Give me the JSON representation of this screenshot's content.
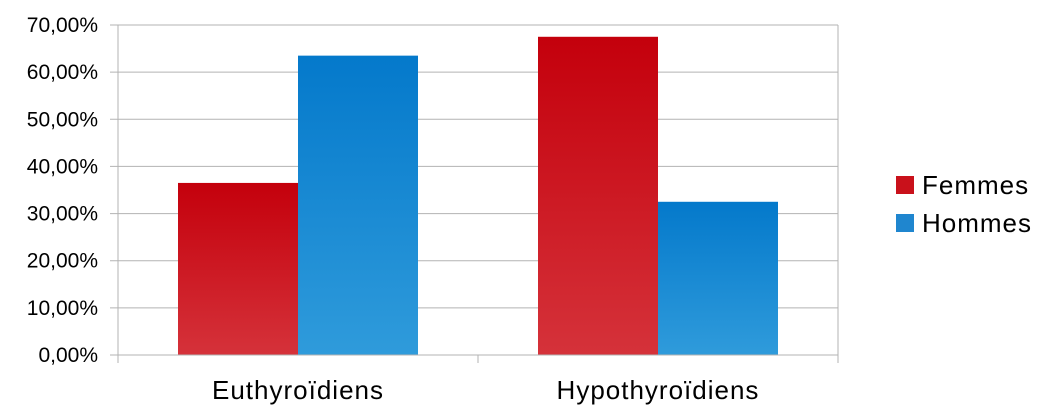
{
  "chart_data": {
    "type": "bar",
    "categories": [
      "Euthyroïdiens",
      "Hypothyroïdiens"
    ],
    "series": [
      {
        "name": "Femmes",
        "values": [
          36.5,
          67.5
        ],
        "color": "#c9111b"
      },
      {
        "name": "Hommes",
        "values": [
          63.5,
          32.5
        ],
        "color": "#1f86cf"
      }
    ],
    "y_ticks": [
      "0,00%",
      "10,00%",
      "20,00%",
      "30,00%",
      "40,00%",
      "50,00%",
      "60,00%",
      "70,00%"
    ],
    "ylim": [
      0,
      70
    ],
    "grid": true,
    "legend_position": "right"
  }
}
